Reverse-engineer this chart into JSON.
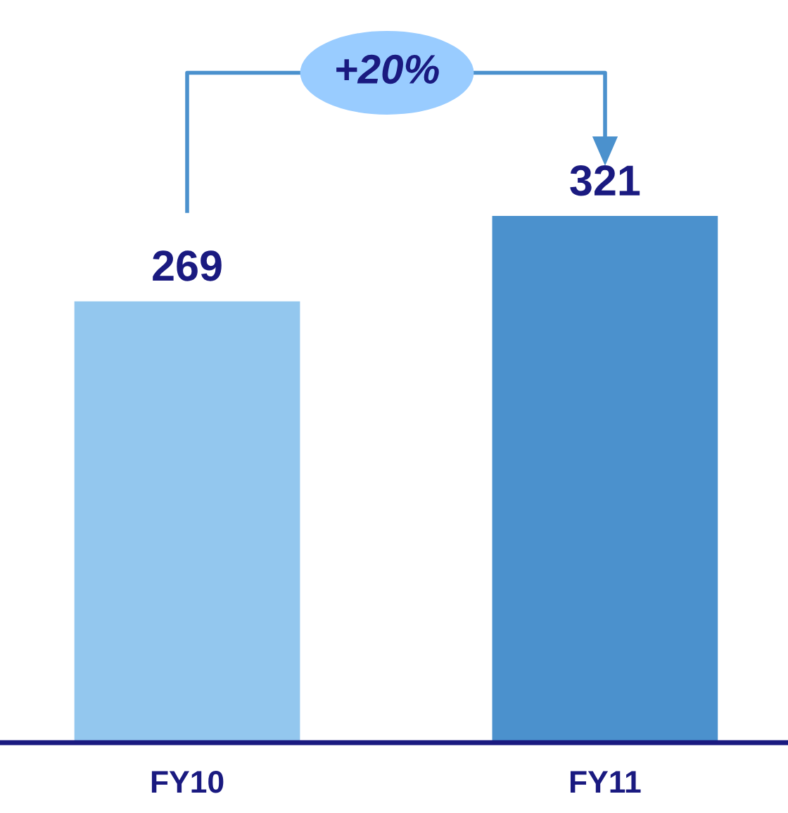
{
  "chart_data": {
    "type": "bar",
    "categories": [
      "FY10",
      "FY11"
    ],
    "values": [
      269,
      321
    ],
    "colors": [
      "#93c7ee",
      "#4b91cd"
    ],
    "data_labels": true,
    "grid": false,
    "annotations": [
      "+20%"
    ]
  }
}
